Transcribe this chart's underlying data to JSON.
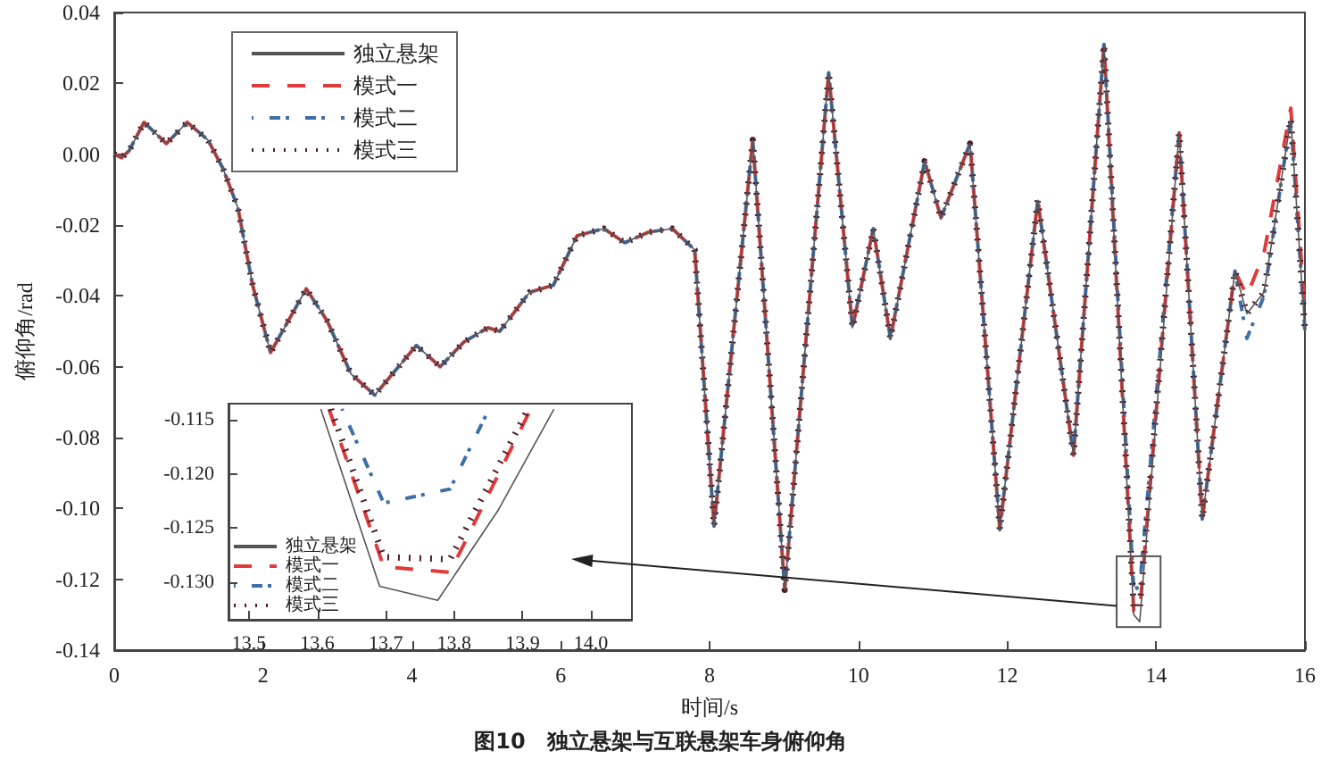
{
  "chart_data": [
    {
      "type": "line",
      "title": "图10　独立悬架与互联悬架车身俯仰角",
      "xlabel": "时间/s",
      "ylabel": "俯仰角/rad",
      "legend": "top left",
      "grid": false,
      "x": [
        0,
        0.1,
        0.2,
        0.4,
        0.7,
        0.98,
        1.26,
        1.46,
        1.66,
        1.86,
        2.1,
        2.34,
        2.58,
        2.86,
        3.18,
        3.5,
        3.78,
        4.06,
        4.38,
        4.7,
        5.02,
        5.18,
        5.58,
        5.9,
        6.22,
        6.58,
        6.86,
        7.18,
        7.5,
        7.8,
        8.06,
        8.58,
        9.01,
        9.6,
        9.92,
        10.2,
        10.43,
        10.89,
        11.11,
        11.5,
        11.9,
        12.41,
        12.89,
        13.3,
        13.7,
        13.78,
        14.31,
        14.62,
        15.06,
        15.22,
        15.45,
        15.81,
        16
      ],
      "series": [
        {
          "name": "独立悬架",
          "color": "#555555",
          "line_style": "solid",
          "values": [
            0,
            -0.001,
            0.001,
            0.009,
            0.003,
            0.009,
            0.004,
            -0.004,
            -0.015,
            -0.037,
            -0.056,
            -0.047,
            -0.038,
            -0.047,
            -0.062,
            -0.068,
            -0.061,
            -0.054,
            -0.06,
            -0.053,
            -0.049,
            -0.05,
            -0.039,
            -0.037,
            -0.023,
            -0.021,
            -0.025,
            -0.022,
            -0.021,
            -0.027,
            -0.105,
            0.004,
            -0.123,
            0.023,
            -0.049,
            -0.021,
            -0.052,
            -0.002,
            -0.018,
            0.003,
            -0.106,
            -0.013,
            -0.085,
            0.031,
            -0.13,
            -0.132,
            0.006,
            -0.103,
            -0.033,
            -0.045,
            -0.039,
            0.01,
            -0.05
          ]
        },
        {
          "name": "模式一",
          "color": "#e03a3a",
          "line_style": "dashed",
          "values": [
            0,
            -0.001,
            0.001,
            0.009,
            0.003,
            0.009,
            0.004,
            -0.004,
            -0.015,
            -0.037,
            -0.056,
            -0.047,
            -0.038,
            -0.047,
            -0.062,
            -0.068,
            -0.061,
            -0.054,
            -0.06,
            -0.053,
            -0.049,
            -0.05,
            -0.039,
            -0.037,
            -0.023,
            -0.021,
            -0.025,
            -0.022,
            -0.021,
            -0.027,
            -0.105,
            0.004,
            -0.123,
            0.023,
            -0.049,
            -0.021,
            -0.052,
            -0.002,
            -0.018,
            0.003,
            -0.106,
            -0.013,
            -0.085,
            0.031,
            -0.129,
            -0.129,
            0.006,
            -0.103,
            -0.033,
            -0.04,
            -0.028,
            0.013,
            -0.045
          ]
        },
        {
          "name": "模式二",
          "color": "#3d6fa8",
          "line_style": "dashdot",
          "values": [
            0,
            -0.001,
            0.001,
            0.009,
            0.003,
            0.009,
            0.004,
            -0.004,
            -0.015,
            -0.037,
            -0.056,
            -0.047,
            -0.038,
            -0.047,
            -0.062,
            -0.068,
            -0.061,
            -0.054,
            -0.06,
            -0.053,
            -0.049,
            -0.05,
            -0.039,
            -0.037,
            -0.023,
            -0.021,
            -0.025,
            -0.022,
            -0.021,
            -0.027,
            -0.105,
            0.004,
            -0.123,
            0.023,
            -0.049,
            -0.021,
            -0.052,
            -0.002,
            -0.018,
            0.003,
            -0.106,
            -0.013,
            -0.085,
            0.031,
            -0.123,
            -0.122,
            0.006,
            -0.103,
            -0.033,
            -0.052,
            -0.04,
            0.01,
            -0.05
          ]
        },
        {
          "name": "模式三",
          "color": "#4a1c28",
          "line_style": "dotted",
          "values": [
            0,
            -0.001,
            0.001,
            0.009,
            0.003,
            0.009,
            0.004,
            -0.004,
            -0.015,
            -0.037,
            -0.056,
            -0.047,
            -0.038,
            -0.047,
            -0.062,
            -0.068,
            -0.061,
            -0.054,
            -0.06,
            -0.053,
            -0.049,
            -0.05,
            -0.039,
            -0.037,
            -0.023,
            -0.021,
            -0.025,
            -0.022,
            -0.021,
            -0.027,
            -0.105,
            0.004,
            -0.123,
            0.023,
            -0.049,
            -0.021,
            -0.052,
            -0.002,
            -0.018,
            0.003,
            -0.106,
            -0.013,
            -0.085,
            0.031,
            -0.128,
            -0.128,
            0.006,
            -0.103,
            -0.033,
            -0.045,
            -0.039,
            0.01,
            -0.05
          ]
        }
      ],
      "xlim": [
        0,
        16
      ],
      "xticks": [
        0,
        2,
        4,
        6,
        8,
        10,
        12,
        14,
        16
      ],
      "ylim": [
        -0.14,
        0.04
      ],
      "yticks": [
        0.04,
        0.02,
        {
          "value": 0,
          "label": "0.00"
        },
        -0.02,
        -0.04,
        -0.06,
        -0.08,
        {
          "value": -0.1,
          "label": "-0.10"
        },
        -0.12,
        -0.14
      ]
    },
    {
      "type": "line",
      "legend": "bottom left",
      "grid": false,
      "series": [
        {
          "name": "独立悬架",
          "color": "#555555",
          "line_style": "solid",
          "x": [
            13.605,
            13.691,
            13.776,
            13.864,
            13.946
          ],
          "values": [
            -0.114,
            -0.1304,
            -0.1317,
            -0.1234,
            -0.114
          ]
        },
        {
          "name": "模式一",
          "color": "#e03a3a",
          "line_style": "dashed",
          "x": [
            13.617,
            13.697,
            13.794,
            13.912
          ],
          "values": [
            -0.114,
            -0.1286,
            -0.1291,
            -0.114
          ]
        },
        {
          "name": "模式二",
          "color": "#3d6fa8",
          "line_style": "dashdot",
          "x": [
            13.636,
            13.697,
            13.794,
            13.851
          ],
          "values": [
            -0.114,
            -0.1227,
            -0.1214,
            -0.114
          ]
        },
        {
          "name": "模式三",
          "color": "#4a1c28",
          "line_style": "dotted",
          "x": [
            13.62,
            13.697,
            13.794,
            13.908
          ],
          "values": [
            -0.114,
            -0.1277,
            -0.1279,
            -0.114
          ]
        }
      ],
      "xlim": [
        13.47,
        14.06
      ],
      "xticks": [
        13.5,
        13.6,
        13.7,
        13.8,
        13.9,
        {
          "value": 14,
          "label": "14.0"
        }
      ],
      "ylim": [
        -0.1335,
        -0.1135
      ],
      "yticks": [
        -0.115,
        {
          "value": -0.12,
          "label": "-0.120"
        },
        -0.125,
        {
          "value": -0.13,
          "label": "-0.130"
        }
      ]
    }
  ]
}
